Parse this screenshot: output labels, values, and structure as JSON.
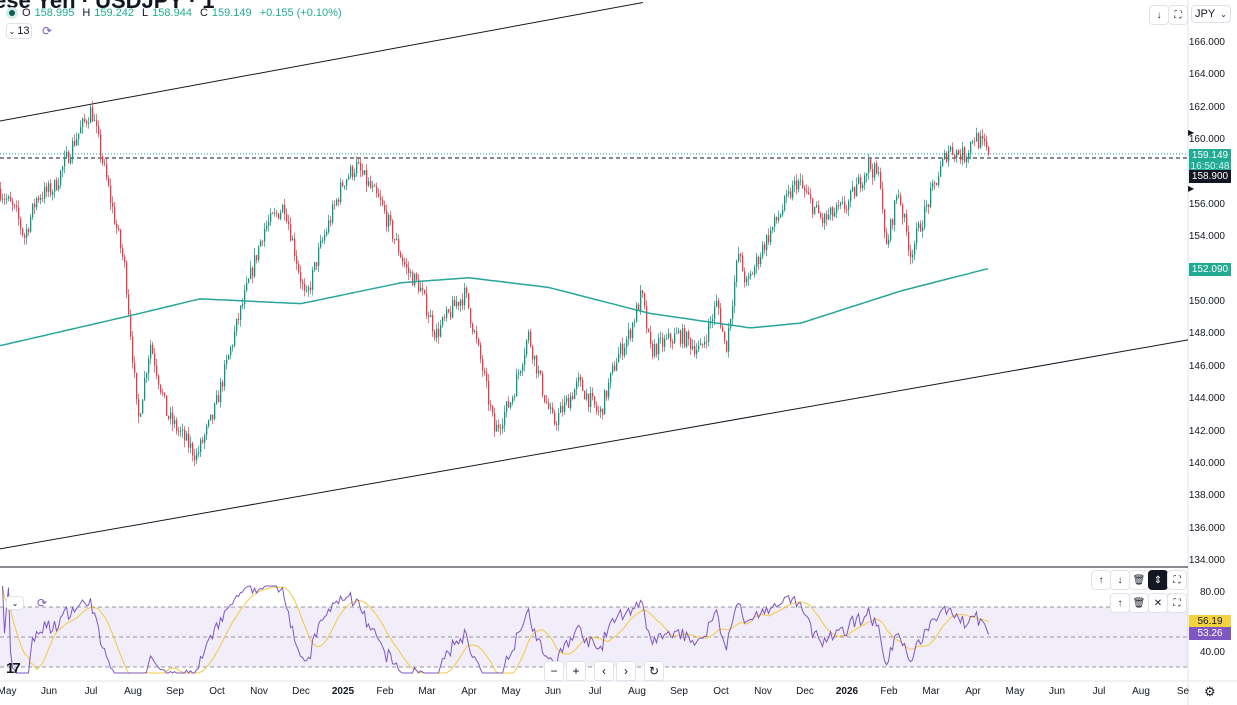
{
  "header": {
    "title": "ese Yen · USDJPY · 1",
    "ohlc": {
      "o_label": "O",
      "o": "158.995",
      "h_label": "H",
      "h": "159.242",
      "l_label": "L",
      "l": "158.944",
      "c_label": "C",
      "c": "159.149",
      "change": "+0.155 (+0.10%)"
    },
    "indicator_count": "13",
    "currency": "JPY"
  },
  "price_axis": {
    "ticks": [
      "166.000",
      "164.000",
      "162.000",
      "160.000",
      "156.000",
      "154.000",
      "150.000",
      "148.000",
      "146.000",
      "144.000",
      "142.000",
      "140.000",
      "138.000",
      "136.000",
      "134.000"
    ],
    "last_price": "159.149",
    "countdown": "16:50:48",
    "crosshair_price": "158.900",
    "ma_value": "152.090"
  },
  "rsi_axis": {
    "ticks": [
      "80.00",
      "40.00"
    ],
    "rsi_value": "56.19",
    "rsi_ma_value": "53.26"
  },
  "time_axis": [
    {
      "label": "May",
      "t": 0
    },
    {
      "label": "Jun",
      "t": 1
    },
    {
      "label": "Jul",
      "t": 2
    },
    {
      "label": "Aug",
      "t": 3
    },
    {
      "label": "Sep",
      "t": 4
    },
    {
      "label": "Oct",
      "t": 5
    },
    {
      "label": "Nov",
      "t": 6
    },
    {
      "label": "Dec",
      "t": 7
    },
    {
      "label": "2025",
      "t": 8,
      "bold": true
    },
    {
      "label": "Feb",
      "t": 9
    },
    {
      "label": "Mar",
      "t": 10
    },
    {
      "label": "Apr",
      "t": 11
    },
    {
      "label": "May",
      "t": 12
    },
    {
      "label": "Jun",
      "t": 13
    },
    {
      "label": "Jul",
      "t": 14
    },
    {
      "label": "Aug",
      "t": 15
    },
    {
      "label": "Sep",
      "t": 16
    },
    {
      "label": "Oct",
      "t": 17
    },
    {
      "label": "Nov",
      "t": 18
    },
    {
      "label": "Dec",
      "t": 19
    },
    {
      "label": "2026",
      "t": 20,
      "bold": true
    },
    {
      "label": "Feb",
      "t": 21
    },
    {
      "label": "Mar",
      "t": 22
    },
    {
      "label": "Apr",
      "t": 23
    },
    {
      "label": "May",
      "t": 24
    },
    {
      "label": "Jun",
      "t": 25
    },
    {
      "label": "Jul",
      "t": 26
    },
    {
      "label": "Aug",
      "t": 27
    },
    {
      "label": "Se",
      "t": 28
    }
  ],
  "chart_data": {
    "type": "candlestick",
    "symbol": "USDJPY",
    "x_unit": "months since May 2024",
    "ylim": [
      134,
      166
    ],
    "price_path": [
      [
        -0.2,
        157
      ],
      [
        0.2,
        155.5
      ],
      [
        0.4,
        154
      ],
      [
        0.7,
        156.5
      ],
      [
        1.1,
        157
      ],
      [
        1.6,
        160
      ],
      [
        2.0,
        161.9
      ],
      [
        2.4,
        157
      ],
      [
        2.8,
        152
      ],
      [
        3.0,
        146
      ],
      [
        3.1,
        142.5
      ],
      [
        3.4,
        147.5
      ],
      [
        3.8,
        143
      ],
      [
        4.5,
        140.5
      ],
      [
        4.9,
        143
      ],
      [
        5.5,
        149
      ],
      [
        6.1,
        154.5
      ],
      [
        6.6,
        156
      ],
      [
        7.1,
        150
      ],
      [
        7.4,
        153
      ],
      [
        8.0,
        157.5
      ],
      [
        8.3,
        158.4
      ],
      [
        8.9,
        156
      ],
      [
        9.5,
        152
      ],
      [
        9.8,
        151
      ],
      [
        10.2,
        148
      ],
      [
        10.7,
        150
      ],
      [
        10.9,
        150.5
      ],
      [
        11.3,
        146
      ],
      [
        11.6,
        142
      ],
      [
        12.0,
        144
      ],
      [
        12.4,
        148
      ],
      [
        12.8,
        144
      ],
      [
        13.0,
        142.5
      ],
      [
        13.6,
        145
      ],
      [
        14.1,
        143
      ],
      [
        14.5,
        146.5
      ],
      [
        14.8,
        148
      ],
      [
        15.1,
        150.5
      ],
      [
        15.3,
        147
      ],
      [
        16.0,
        148
      ],
      [
        16.5,
        147
      ],
      [
        16.9,
        150
      ],
      [
        17.1,
        147
      ],
      [
        17.4,
        153
      ],
      [
        17.6,
        151
      ],
      [
        18.0,
        153.5
      ],
      [
        18.8,
        157.5
      ],
      [
        19.4,
        155
      ],
      [
        20.0,
        156
      ],
      [
        20.5,
        158.5
      ],
      [
        20.8,
        157.5
      ],
      [
        20.9,
        153
      ],
      [
        21.2,
        157
      ],
      [
        21.5,
        153
      ],
      [
        21.9,
        156
      ],
      [
        22.4,
        159.5
      ],
      [
        22.8,
        159
      ],
      [
        23.0,
        160.3
      ],
      [
        23.4,
        159.149
      ]
    ],
    "moving_average": [
      [
        -0.17,
        147.3
      ],
      [
        3.0,
        149.2
      ],
      [
        4.6,
        150.2
      ],
      [
        7.0,
        149.9
      ],
      [
        9.4,
        151.2
      ],
      [
        11.0,
        151.5
      ],
      [
        12.9,
        150.9
      ],
      [
        15.3,
        149.3
      ],
      [
        17.7,
        148.4
      ],
      [
        18.9,
        148.7
      ],
      [
        21.3,
        150.7
      ],
      [
        23.4,
        152.09
      ]
    ],
    "trend_lines": [
      {
        "name": "upper-channel",
        "from": [
          -0.17,
          161.18
        ],
        "to": [
          15.14,
          168.5
        ]
      },
      {
        "name": "lower-channel",
        "from": [
          -0.17,
          134.75
        ],
        "to": [
          28.12,
          147.66
        ]
      }
    ],
    "horizontal_line": 158.9,
    "rsi": {
      "levels": [
        70,
        50,
        30
      ],
      "ylim": [
        25,
        85
      ],
      "last": 56.19,
      "ma_last": 53.26
    },
    "colors": {
      "up": "#089981",
      "down": "#F23645",
      "ma": "#26a69a",
      "rsi": "#7e57c2",
      "rsi_ma": "#f5c842"
    }
  }
}
